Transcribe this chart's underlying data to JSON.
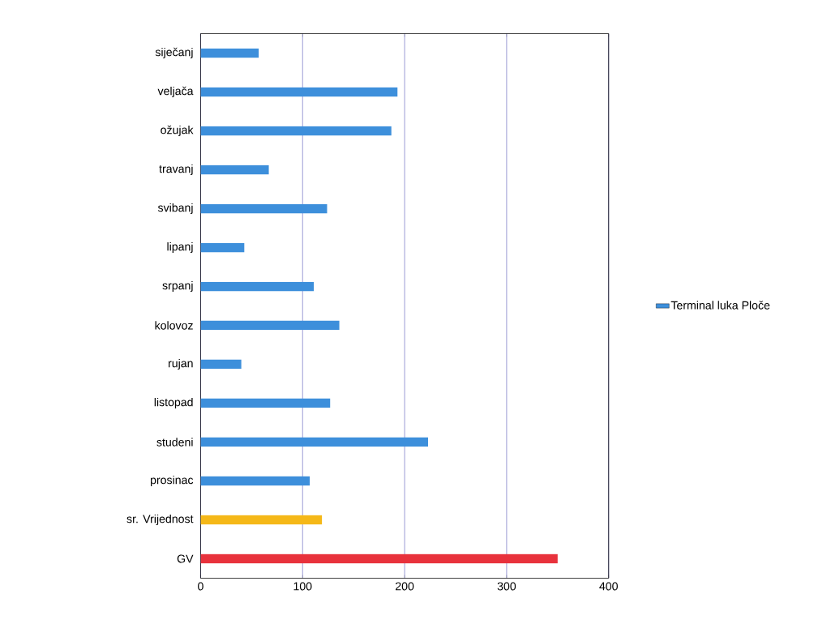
{
  "chart_data": {
    "type": "bar",
    "orientation": "horizontal",
    "categories": [
      "siječanj",
      "veljača",
      "ožujak",
      "travanj",
      "svibanj",
      "lipanj",
      "srpanj",
      "kolovoz",
      "rujan",
      "listopad",
      "studeni",
      "prosinac",
      "sr. Vrijednost",
      "GV"
    ],
    "series": [
      {
        "name": "Terminal luka Ploče",
        "color": "#3d8fdb",
        "values": [
          57,
          193,
          187,
          67,
          124,
          43,
          111,
          136,
          40,
          127,
          223,
          107,
          119,
          350
        ],
        "colors": [
          "#3d8fdb",
          "#3d8fdb",
          "#3d8fdb",
          "#3d8fdb",
          "#3d8fdb",
          "#3d8fdb",
          "#3d8fdb",
          "#3d8fdb",
          "#3d8fdb",
          "#3d8fdb",
          "#3d8fdb",
          "#3d8fdb",
          "#f5b818",
          "#e8323c"
        ]
      }
    ],
    "xlim": [
      0,
      400
    ],
    "xticks": [
      0,
      100,
      200,
      300,
      400
    ],
    "grid": "x",
    "legend": "right"
  }
}
